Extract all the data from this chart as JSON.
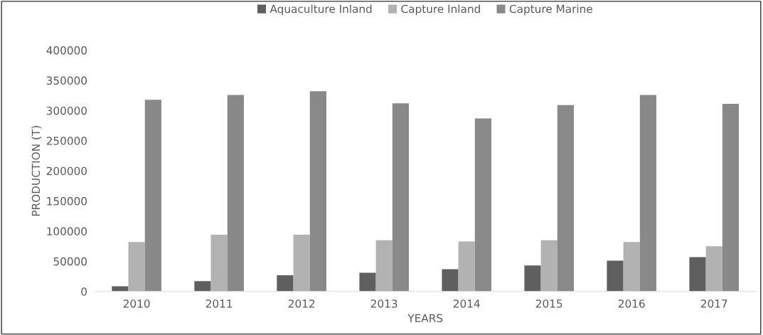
{
  "chart_data": {
    "type": "bar",
    "xlabel": "YEARS",
    "ylabel": "PRODUCTION (T)",
    "categories": [
      "2010",
      "2011",
      "2012",
      "2013",
      "2014",
      "2015",
      "2016",
      "2017"
    ],
    "series": [
      {
        "name": "Aquaculture Inland",
        "color": "#5f5f5f",
        "values": [
          8500,
          17000,
          27000,
          31000,
          37000,
          43000,
          51000,
          57000
        ]
      },
      {
        "name": "Capture Inland",
        "color": "#b2b2b2",
        "values": [
          82000,
          94000,
          94000,
          85000,
          83000,
          85000,
          82000,
          75000
        ]
      },
      {
        "name": "Capture Marine",
        "color": "#898989",
        "values": [
          318000,
          326000,
          332000,
          312000,
          287000,
          309000,
          326000,
          311000
        ]
      }
    ],
    "ylim": [
      0,
      400000
    ],
    "yticks": [
      0,
      50000,
      100000,
      150000,
      200000,
      250000,
      300000,
      350000,
      400000
    ],
    "grid": false,
    "legend": "top"
  }
}
